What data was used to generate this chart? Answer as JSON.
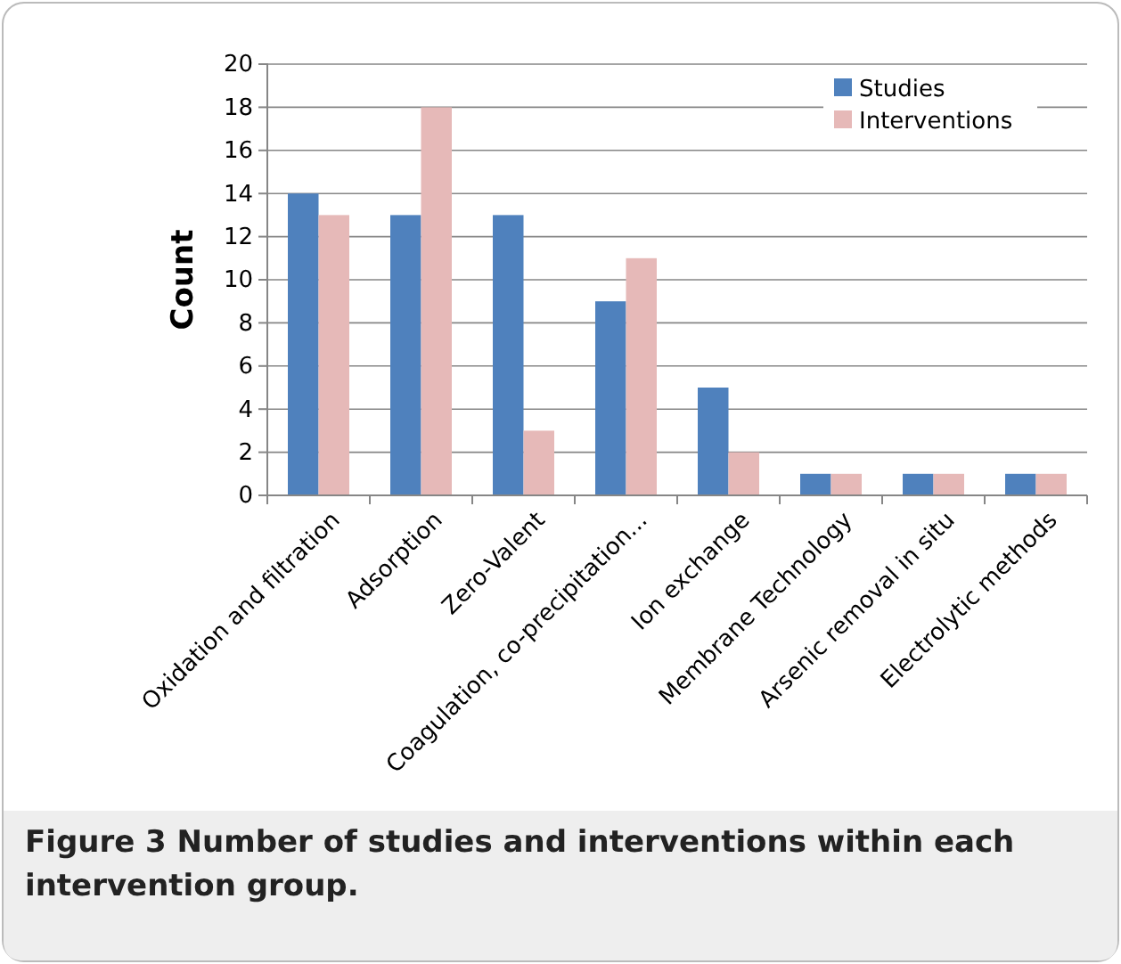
{
  "chart_data": {
    "type": "bar",
    "ylabel": "Count",
    "categories": [
      "Oxidation and filtration",
      "Adsorption",
      "Zero-Valent",
      "Coagulation, co-precipitation...",
      "Ion exchange",
      "Membrane Technology",
      "Arsenic removal in situ",
      "Electrolytic methods"
    ],
    "series": [
      {
        "name": "Studies",
        "color": "#4f81bd",
        "values": [
          14,
          13,
          13,
          9,
          5,
          1,
          1,
          1
        ]
      },
      {
        "name": "Interventions",
        "color": "#e6b9b8",
        "values": [
          13,
          18,
          3,
          11,
          2,
          1,
          1,
          1
        ]
      }
    ],
    "ylim": [
      0,
      20
    ],
    "yticks": [
      0,
      2,
      4,
      6,
      8,
      10,
      12,
      14,
      16,
      18,
      20
    ],
    "grid": "y",
    "legend": "top right",
    "annotations": [
      "Figure 3 Number of studies and interventions within each intervention group."
    ]
  }
}
